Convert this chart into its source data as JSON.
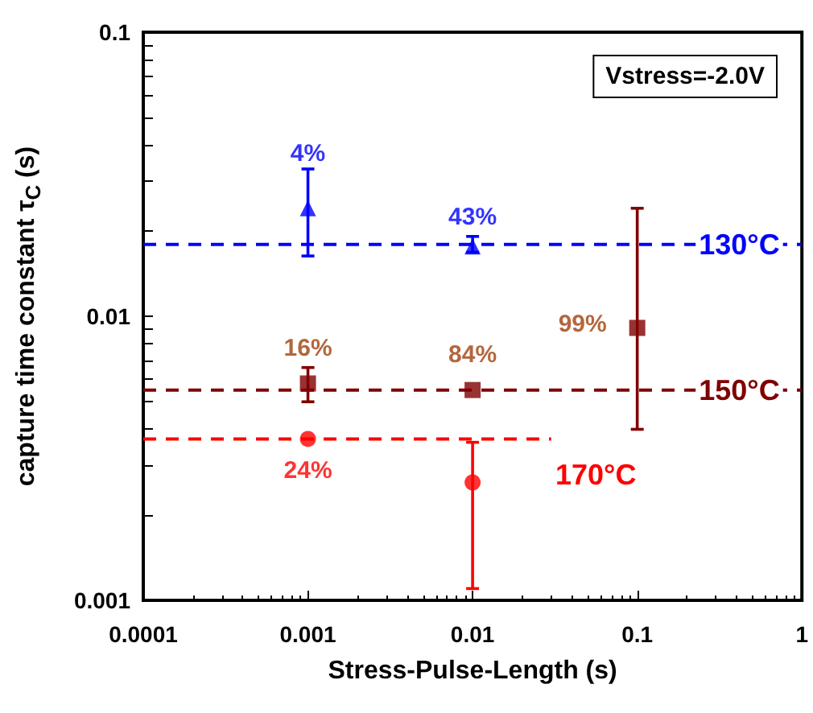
{
  "chart_data": {
    "type": "scatter",
    "xlabel": "Stress-Pulse-Length (s)",
    "ylabel": "capture time constant τ$_{C}$ (s)",
    "log": "xy",
    "xlim": [
      0.0001,
      1
    ],
    "xticks": [
      0.0001,
      0.001,
      0.01,
      0.1,
      1
    ],
    "ylim": [
      0.001,
      0.1
    ],
    "yticks": [
      0.001,
      0.01,
      0.1
    ],
    "grid": false,
    "series": [
      {
        "color": "#0000ff",
        "marker": "triangle",
        "x": [
          0.001,
          0.01
        ],
        "values": [
          0.024,
          0.0176
        ],
        "errors": [
          [
            0.0163,
            0.033
          ],
          [
            0.0168,
            0.0191
          ]
        ]
      },
      {
        "color": "#800000",
        "marker": "square",
        "x": [
          0.001,
          0.01,
          0.1
        ],
        "values": [
          0.0058,
          0.0055,
          0.0091
        ],
        "errors": [
          [
            0.005,
            0.0066
          ],
          null,
          [
            0.004,
            0.024
          ]
        ]
      },
      {
        "color": "#ff0000",
        "marker": "circle",
        "x": [
          0.001,
          0.01
        ],
        "values": [
          0.0037,
          0.0026
        ],
        "errors": [
          null,
          [
            0.0011,
            0.0036
          ]
        ]
      },
      {
        "type": "line",
        "color": "#ff0000",
        "line_style": "dashed",
        "marker": "none",
        "x": [
          0.0001,
          0.03
        ],
        "values": [
          0.0037,
          0.0037
        ]
      }
    ],
    "ref_lines": [
      {
        "axis": "y",
        "value": 0.0179,
        "label": "130°C",
        "color": "#0000ff",
        "line_style": "dashed"
      },
      {
        "axis": "y",
        "value": 0.0055,
        "label": "150°C",
        "color": "#800000",
        "line_style": "dashed"
      }
    ],
    "annotations": [
      "Vstress=-2.0V",
      "170°C",
      {
        "text": "4%",
        "x": 0.001,
        "y": 0.024
      },
      {
        "text": "43%",
        "x": 0.01,
        "y": 0.0176
      },
      {
        "text": "16%",
        "x": 0.001,
        "y": 0.0058
      },
      {
        "text": "84%",
        "x": 0.01,
        "y": 0.0055
      },
      {
        "text": "99%",
        "x": 0.1,
        "y": 0.0091
      },
      {
        "text": "24%",
        "x": 0.001,
        "y": 0.0037
      }
    ]
  }
}
